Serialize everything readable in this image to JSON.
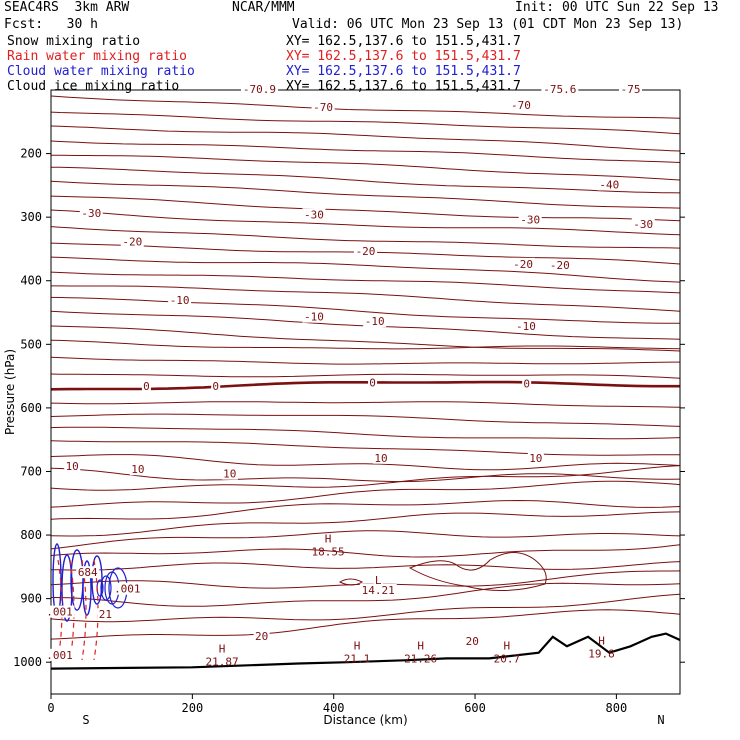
{
  "header": {
    "model": "SEAC4RS  3km ARW",
    "center": "NCAR/MMM",
    "init": "Init: 00 UTC Sun 22 Sep 13",
    "fcst": "Fcst:   30 h",
    "valid": "Valid: 06 UTC Mon 23 Sep 13 (01 CDT Mon 23 Sep 13)"
  },
  "legend": [
    {
      "name": "Snow mixing ratio",
      "xy": "XY= 162.5,137.6 to 151.5,431.7",
      "color": "#000000"
    },
    {
      "name": "Rain water mixing ratio",
      "xy": "XY= 162.5,137.6 to 151.5,431.7",
      "color": "#e02020"
    },
    {
      "name": "Cloud water mixing ratio",
      "xy": "XY= 162.5,137.6 to 151.5,431.7",
      "color": "#2020d0"
    },
    {
      "name": "Cloud ice mixing ratio",
      "xy": "XY= 162.5,137.6 to 151.5,431.7",
      "color": "#000000"
    }
  ],
  "chart_data": {
    "type": "contour cross-section",
    "xlabel": "Distance (km)",
    "ylabel": "Pressure (hPa)",
    "xlim": [
      0,
      890
    ],
    "ylim": [
      1050,
      100
    ],
    "x_ticks": [
      "0",
      "200",
      "400",
      "600",
      "800"
    ],
    "x_tick_values": [
      0,
      200,
      400,
      600,
      800
    ],
    "y_ticks": [
      "200",
      "300",
      "400",
      "500",
      "600",
      "700",
      "800",
      "900",
      "1000"
    ],
    "y_tick_values": [
      200,
      300,
      400,
      500,
      600,
      700,
      800,
      900,
      1000
    ],
    "x_end_labels": {
      "left": "S",
      "right": "N"
    },
    "contour_labels": [
      {
        "text": "-70.9",
        "x": 295,
        "p": 100
      },
      {
        "text": "-70",
        "x": 385,
        "p": 128
      },
      {
        "text": "-70",
        "x": 665,
        "p": 125
      },
      {
        "text": "-75.6",
        "x": 720,
        "p": 100
      },
      {
        "text": "-75",
        "x": 820,
        "p": 100
      },
      {
        "text": "-40",
        "x": 790,
        "p": 250
      },
      {
        "text": "-30",
        "x": 57,
        "p": 295
      },
      {
        "text": "-30",
        "x": 372,
        "p": 297
      },
      {
        "text": "-30",
        "x": 678,
        "p": 305
      },
      {
        "text": "-30",
        "x": 838,
        "p": 312
      },
      {
        "text": "-20",
        "x": 115,
        "p": 340
      },
      {
        "text": "-20",
        "x": 445,
        "p": 355
      },
      {
        "text": "-20",
        "x": 668,
        "p": 375
      },
      {
        "text": "-20",
        "x": 720,
        "p": 377
      },
      {
        "text": "-10",
        "x": 182,
        "p": 432
      },
      {
        "text": "-10",
        "x": 372,
        "p": 458
      },
      {
        "text": "-10",
        "x": 458,
        "p": 465
      },
      {
        "text": "-10",
        "x": 672,
        "p": 473
      },
      {
        "text": "0",
        "x": 135,
        "p": 567
      },
      {
        "text": "0",
        "x": 233,
        "p": 567
      },
      {
        "text": "0",
        "x": 455,
        "p": 562
      },
      {
        "text": "0",
        "x": 673,
        "p": 563
      },
      {
        "text": "10",
        "x": 30,
        "p": 693
      },
      {
        "text": "10",
        "x": 123,
        "p": 698
      },
      {
        "text": "10",
        "x": 253,
        "p": 705
      },
      {
        "text": "10",
        "x": 467,
        "p": 680
      },
      {
        "text": "10",
        "x": 686,
        "p": 680
      },
      {
        "text": "20",
        "x": 298,
        "p": 960
      },
      {
        "text": "20",
        "x": 596,
        "p": 968
      },
      {
        "text": "L",
        "x": 463,
        "p": 872
      },
      {
        "text": "14.21",
        "x": 463,
        "p": 888
      }
    ],
    "extrema": [
      {
        "type": "H",
        "value": "18.55",
        "x": 392,
        "p": 812
      },
      {
        "type": "H",
        "value": "21.87",
        "x": 242,
        "p": 985
      },
      {
        "type": "H",
        "value": "21.1",
        "x": 433,
        "p": 980
      },
      {
        "type": "H",
        "value": "21.26",
        "x": 523,
        "p": 980
      },
      {
        "type": "H",
        "value": "20.7",
        "x": 645,
        "p": 980
      },
      {
        "type": "H",
        "value": "19.8",
        "x": 779,
        "p": 972
      }
    ],
    "cloud_labels": [
      {
        "text": "684",
        "x": 52,
        "p": 860,
        "color": "#7a1010"
      },
      {
        "text": ".001",
        "x": 108,
        "p": 886,
        "color": "#2020d0"
      },
      {
        "text": ".001",
        "x": 12,
        "p": 922,
        "color": "#2020d0"
      },
      {
        "text": ".001",
        "x": 12,
        "p": 990,
        "color": "#7a1010"
      },
      {
        "text": "21",
        "x": 77,
        "p": 926,
        "color": "#7a1010"
      }
    ]
  }
}
